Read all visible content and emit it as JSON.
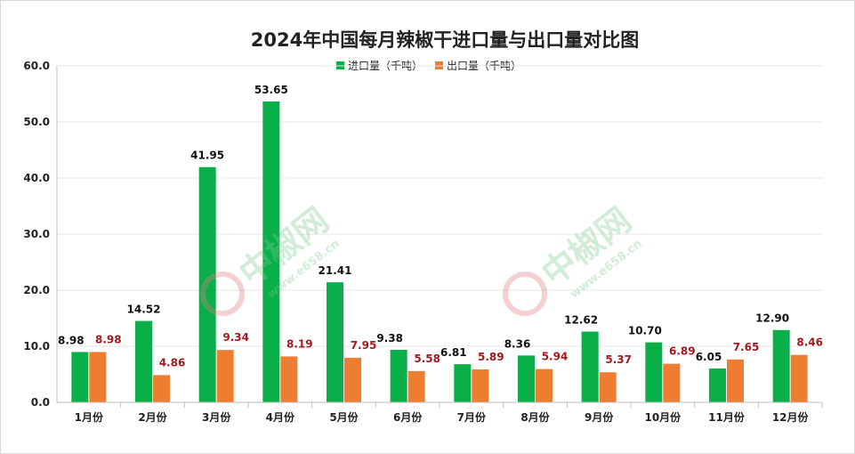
{
  "chart_data": {
    "type": "bar",
    "title": "2024年中国每月辣椒干进口量与出口量对比图",
    "categories": [
      "1月份",
      "2月份",
      "3月份",
      "4月份",
      "5月份",
      "6月份",
      "7月份",
      "8月份",
      "9月份",
      "10月份",
      "11月份",
      "12月份"
    ],
    "series": [
      {
        "name": "进口量（千吨）",
        "color": "#0aaf4a",
        "values": [
          8.98,
          14.52,
          41.95,
          53.65,
          21.41,
          9.38,
          6.81,
          8.36,
          12.62,
          10.7,
          6.05,
          12.9
        ]
      },
      {
        "name": "出口量（千吨）",
        "color": "#ee7d31",
        "values": [
          8.98,
          4.86,
          9.34,
          8.19,
          7.95,
          5.58,
          5.89,
          5.94,
          5.37,
          6.89,
          7.65,
          8.46
        ]
      }
    ],
    "ylim": [
      0,
      60
    ],
    "yticks": [
      "0.0",
      "10.0",
      "20.0",
      "30.0",
      "40.0",
      "50.0",
      "60.0"
    ],
    "legend_position": "top-center",
    "grid": true
  },
  "watermark": {
    "name": "中椒网",
    "url": "www.e658.cn",
    "color": "#7ec98f"
  }
}
